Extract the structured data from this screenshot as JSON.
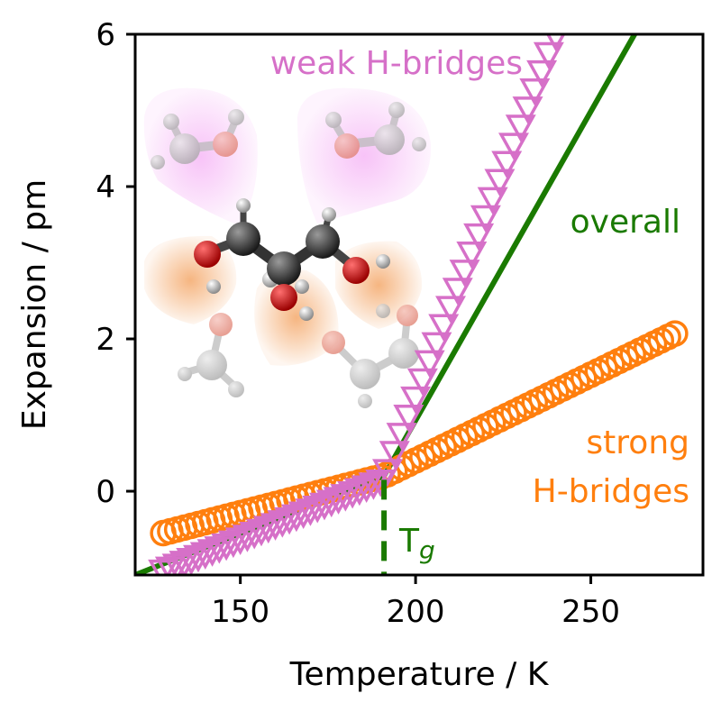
{
  "chart_data": {
    "type": "scatter",
    "title": "",
    "xlabel": "Temperature / K",
    "ylabel": "Expansion / pm",
    "xlim": [
      120,
      282
    ],
    "ylim": [
      -1.1,
      6
    ],
    "x_ticks": [
      150,
      200,
      250
    ],
    "y_ticks": [
      0,
      2,
      4,
      6
    ],
    "grid": false,
    "legend": "none",
    "series": [
      {
        "name": "overall",
        "kind": "line",
        "color": "#1a7a00",
        "points": [
          [
            120,
            -1.1
          ],
          [
            191,
            0.2
          ],
          [
            262.5,
            6.0
          ]
        ]
      },
      {
        "name": "strong H-bridges",
        "kind": "circles",
        "color": "#ff7f0e",
        "x_start": 128,
        "x_end": 274,
        "x_step": 2,
        "segments": [
          [
            128,
            -0.55,
            191,
            0.2
          ],
          [
            191,
            0.2,
            274,
            2.07
          ]
        ]
      },
      {
        "name": "weak H-bridges",
        "kind": "triangles",
        "color": "#d670c8",
        "x_start": 128,
        "x_end": 241,
        "x_step": 2,
        "segments": [
          [
            128,
            -1.05,
            191,
            0.15
          ],
          [
            191,
            0.15,
            241,
            6.1
          ]
        ]
      }
    ],
    "annotations": {
      "weak": {
        "text": "weak H-bridges",
        "color": "#d670c8"
      },
      "overall": {
        "text": "overall",
        "color": "#1a7a00"
      },
      "strong_line1": {
        "text": "strong",
        "color": "#ff7f0e"
      },
      "strong_line2": {
        "text": "H-bridges",
        "color": "#ff7f0e"
      },
      "tg": {
        "text": "T",
        "sub": "g",
        "color": "#1a7a00",
        "x": 191
      }
    }
  }
}
